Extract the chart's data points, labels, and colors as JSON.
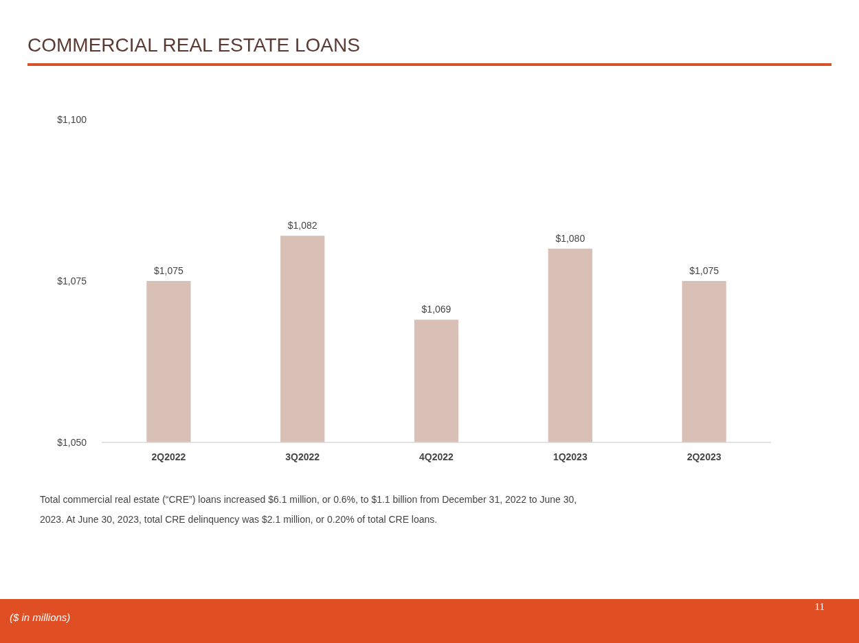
{
  "chart_data": {
    "type": "bar",
    "title": "COMMERCIAL REAL ESTATE LOANS",
    "categories": [
      "2Q2022",
      "3Q2022",
      "4Q2022",
      "1Q2023",
      "2Q2023"
    ],
    "values": [
      1075,
      1082,
      1069,
      1080,
      1075
    ],
    "value_labels": [
      "$1,075",
      "$1,082",
      "$1,069",
      "$1,080",
      "$1,075"
    ],
    "color": "#d9c0b7",
    "ylim": [
      1050,
      1100
    ],
    "yticks": [
      {
        "value": 1050,
        "label": "$1,050"
      },
      {
        "value": 1075,
        "label": "$1,075"
      },
      {
        "value": 1100,
        "label": "$1,100"
      }
    ],
    "grid": false,
    "annotations": [
      "Total commercial real estate (“CRE”) loans increased $6.1 million, or 0.6%, to $1.1 billion from December 31, 2022 to June 30, 2023. At June 30, 2023, total CRE delinquency was $2.1 million, or 0.20% of total CRE loans.",
      "($ in millions)",
      "11"
    ]
  }
}
